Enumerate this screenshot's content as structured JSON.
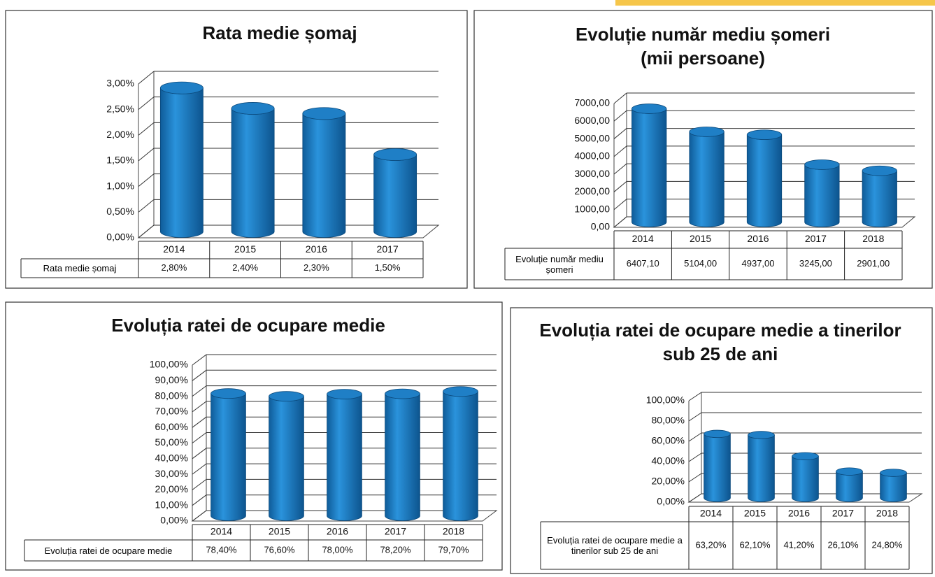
{
  "chart_data": [
    {
      "type": "bar",
      "title": "Rata medie șomaj",
      "categories": [
        "2014",
        "2015",
        "2016",
        "2017"
      ],
      "series": [
        {
          "name": "Rata medie șomaj",
          "color": "#1f7fc6",
          "values": [
            2.8,
            2.4,
            2.3,
            1.5
          ],
          "value_labels": [
            "2,80%",
            "2,40%",
            "2,30%",
            "1,50%"
          ]
        }
      ],
      "ylim": [
        0,
        3
      ],
      "yticks": [
        {
          "value": 0,
          "label": "0,00%"
        },
        {
          "value": 0.5,
          "label": "0,50%"
        },
        {
          "value": 1,
          "label": "1,00%"
        },
        {
          "value": 1.5,
          "label": "1,50%"
        },
        {
          "value": 2,
          "label": "2,00%"
        },
        {
          "value": 2.5,
          "label": "2,50%"
        },
        {
          "value": 3,
          "label": "3,00%"
        }
      ],
      "grid": true
    },
    {
      "type": "bar",
      "title": "Evoluție număr mediu șomeri",
      "subtitle": "(mii persoane)",
      "categories": [
        "2014",
        "2015",
        "2016",
        "2017",
        "2018"
      ],
      "series": [
        {
          "name": "Evoluție număr mediu șomeri",
          "color": "#1f7fc6",
          "values": [
            6407.1,
            5104,
            4937,
            3245,
            2901
          ],
          "value_labels": [
            "6407,10",
            "5104,00",
            "4937,00",
            "3245,00",
            "2901,00"
          ]
        }
      ],
      "ylim": [
        0,
        7000
      ],
      "yticks": [
        {
          "value": 0,
          "label": "0,00"
        },
        {
          "value": 1000,
          "label": "1000,00"
        },
        {
          "value": 2000,
          "label": "2000,00"
        },
        {
          "value": 3000,
          "label": "3000,00"
        },
        {
          "value": 4000,
          "label": "4000,00"
        },
        {
          "value": 5000,
          "label": "5000,00"
        },
        {
          "value": 6000,
          "label": "6000,00"
        },
        {
          "value": 7000,
          "label": "7000,00"
        }
      ],
      "grid": true
    },
    {
      "type": "bar",
      "title": "Evoluția ratei de ocupare medie",
      "categories": [
        "2014",
        "2015",
        "2016",
        "2017",
        "2018"
      ],
      "series": [
        {
          "name": "Evoluția ratei de ocupare medie",
          "color": "#1f7fc6",
          "values": [
            78.4,
            76.6,
            78.0,
            78.2,
            79.7
          ],
          "value_labels": [
            "78,40%",
            "76,60%",
            "78,00%",
            "78,20%",
            "79,70%"
          ]
        }
      ],
      "ylim": [
        0,
        100
      ],
      "yticks": [
        {
          "value": 0,
          "label": "0,00%"
        },
        {
          "value": 10,
          "label": "10,00%"
        },
        {
          "value": 20,
          "label": "20,00%"
        },
        {
          "value": 30,
          "label": "30,00%"
        },
        {
          "value": 40,
          "label": "40,00%"
        },
        {
          "value": 50,
          "label": "50,00%"
        },
        {
          "value": 60,
          "label": "60,00%"
        },
        {
          "value": 70,
          "label": "70,00%"
        },
        {
          "value": 80,
          "label": "80,00%"
        },
        {
          "value": 90,
          "label": "90,00%"
        },
        {
          "value": 100,
          "label": "100,00%"
        }
      ],
      "grid": true
    },
    {
      "type": "bar",
      "title": "Evoluția ratei de ocupare medie a tinerilor sub 25 de ani",
      "categories": [
        "2014",
        "2015",
        "2016",
        "2017",
        "2018"
      ],
      "series": [
        {
          "name": "Evoluția ratei de ocupare medie a tinerilor sub 25 de ani",
          "color": "#1f7fc6",
          "values": [
            63.2,
            62.1,
            41.2,
            26.1,
            24.8
          ],
          "value_labels": [
            "63,20%",
            "62,10%",
            "41,20%",
            "26,10%",
            "24,80%"
          ]
        }
      ],
      "ylim": [
        0,
        100
      ],
      "yticks": [
        {
          "value": 0,
          "label": "0,00%"
        },
        {
          "value": 20,
          "label": "20,00%"
        },
        {
          "value": 40,
          "label": "40,00%"
        },
        {
          "value": 60,
          "label": "60,00%"
        },
        {
          "value": 80,
          "label": "80,00%"
        },
        {
          "value": 100,
          "label": "100,00%"
        }
      ],
      "grid": true
    }
  ]
}
